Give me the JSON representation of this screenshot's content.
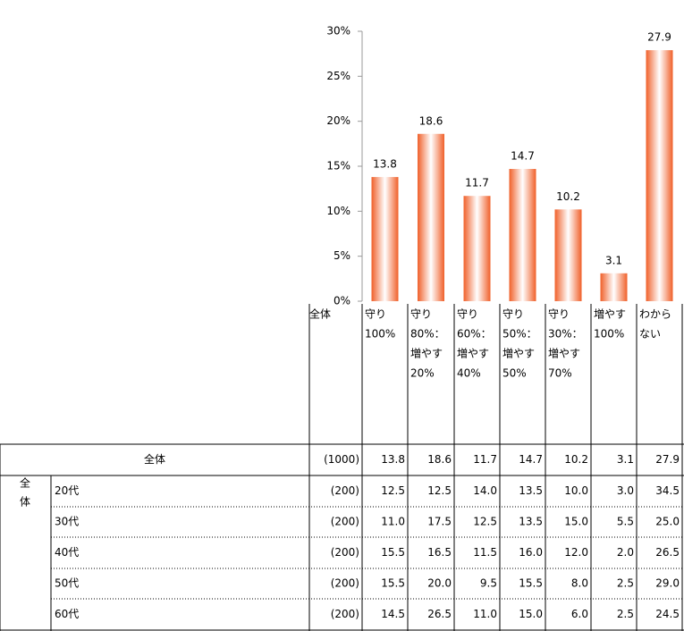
{
  "chart_data": {
    "type": "bar",
    "color": "#f0602a",
    "categories": [
      [
        "守り",
        "100%"
      ],
      [
        "守り",
        "80%：",
        "増やす",
        "20%"
      ],
      [
        "守り",
        "60%：",
        "増やす",
        "40%"
      ],
      [
        "守り",
        "50%：",
        "増やす",
        "50%"
      ],
      [
        "守り",
        "30%：",
        "増やす",
        "70%"
      ],
      [
        "増やす",
        "100%"
      ],
      [
        "わから",
        "ない"
      ]
    ],
    "values": [
      13.8,
      18.6,
      11.7,
      14.7,
      10.2,
      3.1,
      27.9
    ],
    "ylim": [
      0,
      30
    ],
    "yticks": [
      {
        "value": 0,
        "label": "0%"
      },
      {
        "value": 5,
        "label": "5%"
      },
      {
        "value": 10,
        "label": "10%"
      },
      {
        "value": 15,
        "label": "15%"
      },
      {
        "value": 20,
        "label": "20%"
      },
      {
        "value": 25,
        "label": "25%"
      },
      {
        "value": 30,
        "label": "30%"
      }
    ]
  },
  "table": {
    "total_header": "全体",
    "group_label": [
      "全",
      "体"
    ],
    "rows": [
      {
        "label": "全体",
        "n": "(1000)",
        "values": [
          "13.8",
          "18.6",
          "11.7",
          "14.7",
          "10.2",
          "3.1",
          "27.9"
        ]
      },
      {
        "label": "20代",
        "n": "(200)",
        "values": [
          "12.5",
          "12.5",
          "14.0",
          "13.5",
          "10.0",
          "3.0",
          "34.5"
        ]
      },
      {
        "label": "30代",
        "n": "(200)",
        "values": [
          "11.0",
          "17.5",
          "12.5",
          "13.5",
          "15.0",
          "5.5",
          "25.0"
        ]
      },
      {
        "label": "40代",
        "n": "(200)",
        "values": [
          "15.5",
          "16.5",
          "11.5",
          "16.0",
          "12.0",
          "2.0",
          "26.5"
        ]
      },
      {
        "label": "50代",
        "n": "(200)",
        "values": [
          "15.5",
          "20.0",
          "9.5",
          "15.5",
          "8.0",
          "2.5",
          "29.0"
        ]
      },
      {
        "label": "60代",
        "n": "(200)",
        "values": [
          "14.5",
          "26.5",
          "11.0",
          "15.0",
          "6.0",
          "2.5",
          "24.5"
        ]
      }
    ]
  }
}
